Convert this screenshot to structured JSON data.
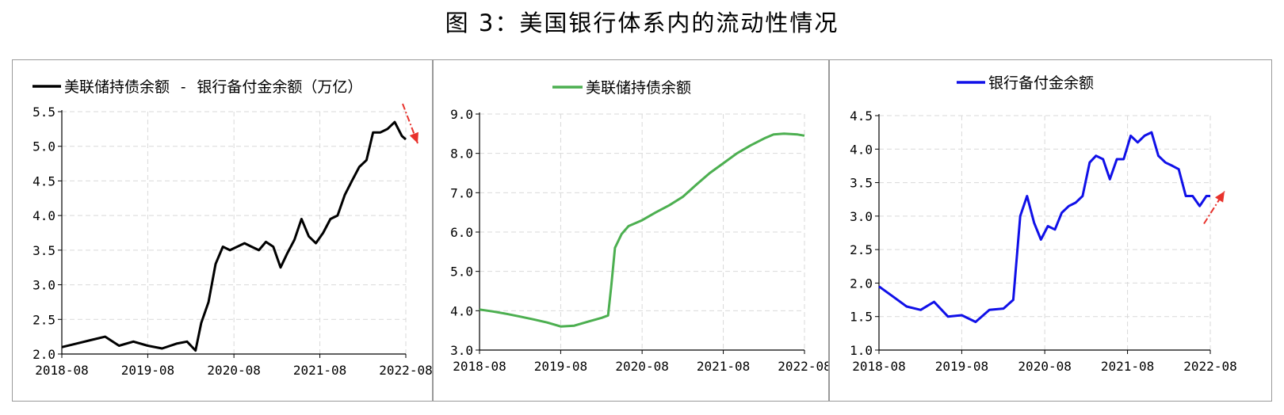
{
  "figure_title": "图 3：美国银行体系内的流动性情况",
  "chart_data": [
    {
      "type": "line",
      "series": [
        {
          "name": "美联储持债余额 - 银行备付金余额（万亿）",
          "color": "#000000"
        }
      ],
      "x_ticks": [
        "2018-08",
        "2019-08",
        "2020-08",
        "2021-08",
        "2022-08"
      ],
      "ylim": [
        2.0,
        5.5
      ],
      "y_ticks": [
        "2.0",
        "2.5",
        "3.0",
        "3.5",
        "4.0",
        "4.5",
        "5.0",
        "5.5"
      ],
      "grid": true,
      "legend": "top",
      "arrow": {
        "direction": "down",
        "color": "#e8322c"
      },
      "x": [
        "2018-08-01",
        "2018-10-01",
        "2018-12-01",
        "2019-02-01",
        "2019-04-01",
        "2019-06-01",
        "2019-08-01",
        "2019-10-01",
        "2019-12-01",
        "2020-01-15",
        "2020-02-20",
        "2020-03-15",
        "2020-04-15",
        "2020-05-15",
        "2020-06-15",
        "2020-07-15",
        "2020-08-15",
        "2020-09-15",
        "2020-10-15",
        "2020-11-15",
        "2020-12-15",
        "2021-01-15",
        "2021-02-15",
        "2021-03-15",
        "2021-04-15",
        "2021-05-15",
        "2021-06-15",
        "2021-07-15",
        "2021-08-15",
        "2021-09-15",
        "2021-10-15",
        "2021-11-15",
        "2021-12-15",
        "2022-01-15",
        "2022-02-15",
        "2022-03-15",
        "2022-04-15",
        "2022-05-15",
        "2022-06-15",
        "2022-07-15",
        "2022-08-01"
      ],
      "values": [
        2.1,
        2.15,
        2.2,
        2.25,
        2.12,
        2.18,
        2.12,
        2.08,
        2.15,
        2.18,
        2.05,
        2.45,
        2.75,
        3.3,
        3.55,
        3.5,
        3.55,
        3.6,
        3.55,
        3.5,
        3.62,
        3.55,
        3.25,
        3.45,
        3.65,
        3.95,
        3.7,
        3.6,
        3.75,
        3.95,
        4.0,
        4.3,
        4.5,
        4.7,
        4.8,
        5.2,
        5.2,
        5.25,
        5.35,
        5.15,
        5.1
      ]
    },
    {
      "type": "line",
      "series": [
        {
          "name": "美联储持债余额",
          "color": "#4caf50"
        }
      ],
      "x_ticks": [
        "2018-08",
        "2019-08",
        "2020-08",
        "2021-08",
        "2022-08"
      ],
      "ylim": [
        3.0,
        9.0
      ],
      "y_ticks": [
        "3.0",
        "4.0",
        "5.0",
        "6.0",
        "7.0",
        "8.0",
        "9.0"
      ],
      "grid": true,
      "legend": "top",
      "x": [
        "2018-08-01",
        "2018-10-01",
        "2018-12-01",
        "2019-02-01",
        "2019-04-01",
        "2019-06-01",
        "2019-08-01",
        "2019-10-01",
        "2019-12-01",
        "2020-02-01",
        "2020-03-01",
        "2020-03-15",
        "2020-04-01",
        "2020-05-01",
        "2020-06-01",
        "2020-08-01",
        "2020-10-01",
        "2020-12-01",
        "2021-02-01",
        "2021-04-01",
        "2021-06-01",
        "2021-08-01",
        "2021-10-01",
        "2021-12-01",
        "2022-02-01",
        "2022-03-15",
        "2022-05-01",
        "2022-07-01",
        "2022-08-01"
      ],
      "values": [
        4.03,
        3.98,
        3.92,
        3.85,
        3.78,
        3.7,
        3.6,
        3.62,
        3.72,
        3.82,
        3.88,
        4.6,
        5.6,
        5.95,
        6.15,
        6.3,
        6.5,
        6.68,
        6.9,
        7.2,
        7.5,
        7.75,
        8.0,
        8.2,
        8.38,
        8.48,
        8.5,
        8.48,
        8.45
      ]
    },
    {
      "type": "line",
      "series": [
        {
          "name": "银行备付金余额",
          "color": "#1010e8"
        }
      ],
      "x_ticks": [
        "2018-08",
        "2019-08",
        "2020-08",
        "2021-08",
        "2022-08"
      ],
      "ylim": [
        1.0,
        4.5
      ],
      "y_ticks": [
        "1.0",
        "1.5",
        "2.0",
        "2.5",
        "3.0",
        "3.5",
        "4.0",
        "4.5"
      ],
      "grid": true,
      "legend": "top",
      "arrow": {
        "direction": "up",
        "color": "#e8322c"
      },
      "x": [
        "2018-08-01",
        "2018-10-01",
        "2018-12-01",
        "2019-02-01",
        "2019-04-01",
        "2019-06-01",
        "2019-08-01",
        "2019-10-01",
        "2019-12-01",
        "2020-02-01",
        "2020-03-15",
        "2020-04-15",
        "2020-05-15",
        "2020-06-15",
        "2020-07-15",
        "2020-08-15",
        "2020-09-15",
        "2020-10-15",
        "2020-11-15",
        "2020-12-15",
        "2021-01-15",
        "2021-02-15",
        "2021-03-15",
        "2021-04-15",
        "2021-05-15",
        "2021-06-15",
        "2021-07-15",
        "2021-08-15",
        "2021-09-15",
        "2021-10-15",
        "2021-11-15",
        "2021-12-15",
        "2022-01-15",
        "2022-02-15",
        "2022-03-15",
        "2022-04-15",
        "2022-05-15",
        "2022-06-15",
        "2022-07-15",
        "2022-08-01"
      ],
      "values": [
        1.95,
        1.8,
        1.65,
        1.6,
        1.72,
        1.5,
        1.52,
        1.42,
        1.6,
        1.62,
        1.75,
        3.0,
        3.3,
        2.9,
        2.65,
        2.85,
        2.8,
        3.05,
        3.15,
        3.2,
        3.3,
        3.8,
        3.9,
        3.85,
        3.55,
        3.85,
        3.85,
        4.2,
        4.1,
        4.2,
        4.25,
        3.9,
        3.8,
        3.75,
        3.7,
        3.3,
        3.3,
        3.15,
        3.3,
        3.3
      ]
    }
  ]
}
